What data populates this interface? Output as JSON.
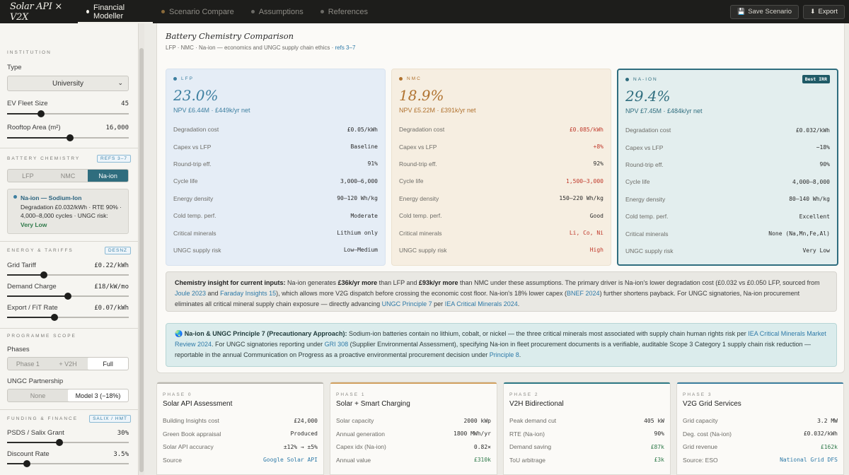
{
  "app": {
    "brand": "Solar API × V2X"
  },
  "nav": {
    "tabs": [
      {
        "label": "Financial Modeller"
      },
      {
        "label": "Scenario Compare"
      },
      {
        "label": "Assumptions"
      },
      {
        "label": "References"
      }
    ],
    "save_label": "Save Scenario",
    "export_label": "Export"
  },
  "sidebar": {
    "institution": {
      "heading": "INSTITUTION",
      "type_label": "Type",
      "type_value": "University",
      "fleet_label": "EV Fleet Size",
      "fleet_value": "45",
      "fleet_fraction": 0.28,
      "roof_label": "Rooftop Area (m²)",
      "roof_value": "16,000",
      "roof_fraction": 0.52
    },
    "chemistry": {
      "heading": "BATTERY CHEMISTRY",
      "tag": "REFS 3–7",
      "options": [
        "LFP",
        "NMC",
        "Na-ion"
      ],
      "selected": "Na-ion",
      "info_title": "Na-ion — Sodium-Ion",
      "info_text": "Degradation £0.032/kWh · RTE 90% · 4,000–8,000 cycles · UNGC risk: ",
      "info_risk": "Very Low"
    },
    "energy": {
      "heading": "ENERGY & TARIFFS",
      "tag": "DESNZ",
      "grid_label": "Grid Tariff",
      "grid_value": "£0.22/kWh",
      "grid_fraction": 0.3,
      "demand_label": "Demand Charge",
      "demand_value": "£18/kW/mo",
      "demand_fraction": 0.5,
      "export_label": "Export / FiT Rate",
      "export_value": "£0.07/kWh",
      "export_fraction": 0.39
    },
    "scope": {
      "heading": "PROGRAMME SCOPE",
      "phases_label": "Phases",
      "phase_options": [
        "Phase 1",
        "+ V2H",
        "Full"
      ],
      "phase_selected": "Full",
      "ungc_label": "UNGC Partnership",
      "ungc_options": [
        "None",
        "Model 3 (−18%)"
      ],
      "ungc_selected": "Model 3 (−18%)"
    },
    "funding": {
      "heading": "FUNDING & FINANCE",
      "tag": "SALIX / HMT",
      "psds_label": "PSDS / Salix Grant",
      "psds_value": "30%",
      "psds_fraction": 0.43,
      "discount_label": "Discount Rate",
      "discount_value": "3.5%",
      "discount_fraction": 0.16
    }
  },
  "main": {
    "title": "Battery Chemistry Comparison",
    "subtitle": "LFP · NMC · Na-ion — economics and UNGC supply chain ethics · ",
    "subtitle_refs": "refs 3–7",
    "row_labels": [
      "Degradation cost",
      "Capex vs LFP",
      "Round-trip eff.",
      "Cycle life",
      "Energy density",
      "Cold temp. perf.",
      "Critical minerals",
      "UNGC supply risk"
    ],
    "cards": [
      {
        "tag": "LFP",
        "color": "#3d7fa0",
        "irr": "23.0%",
        "npv": "NPV £6.44M · £449k/yr net",
        "values": [
          "£0.05/kWh",
          "Baseline",
          "91%",
          "3,000–6,000",
          "90–120 Wh/kg",
          "Moderate",
          "Lithium only",
          "Low–Medium"
        ]
      },
      {
        "tag": "NMC",
        "color": "#b0722f",
        "irr": "18.9%",
        "npv": "NPV £5.22M · £391k/yr net",
        "values": [
          "£0.085/kWh",
          "+8%",
          "92%",
          "1,500–3,000",
          "150–220 Wh/kg",
          "Good",
          "Li, Co, Ni",
          "High"
        ]
      },
      {
        "tag": "NA-ION",
        "color": "#2f6d7e",
        "badge": "Best IRR",
        "irr": "29.4%",
        "npv": "NPV £7.45M · £484k/yr net",
        "values": [
          "£0.032/kWh",
          "−18%",
          "90%",
          "4,000–8,000",
          "80–140 Wh/kg",
          "Excellent",
          "None (Na,Mn,Fe,Al)",
          "Very Low"
        ]
      }
    ],
    "insight": {
      "lead": "Chemistry insight for current inputs:",
      "t1": " Na-ion generates ",
      "b1": "£36k/yr more",
      "t2": " than LFP and ",
      "b2": "£93k/yr more",
      "t3": " than NMC under these assumptions. The primary driver is Na-ion's lower degradation cost (£0.032 vs £0.050 LFP, sourced from ",
      "l1": "Joule 2023",
      "t4": " and ",
      "l2": "Faraday Insights 15",
      "t5": "), which allows more V2G dispatch before crossing the economic cost floor. Na-ion's 18% lower capex (",
      "l3": "BNEF 2024",
      "t6": ") further shortens payback. For UNGC signatories, Na-ion procurement eliminates all critical mineral supply chain exposure — directly advancing ",
      "l4": "UNGC Principle 7",
      "t7": " per ",
      "l5": "IEA Critical Minerals 2024",
      "t8": "."
    },
    "ungc": {
      "icon": "🌏",
      "lead": "Na-ion & UNGC Principle 7 (Precautionary Approach):",
      "t1": " Sodium-ion batteries contain no lithium, cobalt, or nickel — the three critical minerals most associated with supply chain human rights risk per ",
      "l1": "IEA Critical Minerals Market Review 2024",
      "t2": ". For UNGC signatories reporting under ",
      "l2": "GRI 308",
      "t3": " (Supplier Environmental Assessment), specifying Na-ion in fleet procurement documents is a verifiable, auditable Scope 3 Category 1 supply chain risk reduction — reportable in the annual Communication on Progress as a proactive environmental procurement decision under ",
      "l3": "Principle 8",
      "t4": "."
    }
  },
  "phases": [
    {
      "phase": "PHASE 0",
      "title": "Solar API Assessment",
      "rows": [
        {
          "label": "Building Insights cost",
          "value": "£24,000"
        },
        {
          "label": "Green Book appraisal",
          "value": "Produced"
        },
        {
          "label": "Solar API accuracy",
          "value": "±12% → ±5%"
        },
        {
          "label": "Source",
          "value": "Google Solar API"
        }
      ]
    },
    {
      "phase": "PHASE 1",
      "title": "Solar + Smart Charging",
      "rows": [
        {
          "label": "Solar capacity",
          "value": "2000 kWp"
        },
        {
          "label": "Annual generation",
          "value": "1800 MWh/yr"
        },
        {
          "label": "Capex idx (Na-ion)",
          "value": "0.82×"
        },
        {
          "label": "Annual value",
          "value": "£310k"
        }
      ]
    },
    {
      "phase": "PHASE 2",
      "title": "V2H Bidirectional",
      "rows": [
        {
          "label": "Peak demand cut",
          "value": "405 kW"
        },
        {
          "label": "RTE (Na-ion)",
          "value": "90%"
        },
        {
          "label": "Demand saving",
          "value": "£87k"
        },
        {
          "label": "ToU arbitrage",
          "value": "£3k"
        }
      ]
    },
    {
      "phase": "PHASE 3",
      "title": "V2G Grid Services",
      "rows": [
        {
          "label": "Grid capacity",
          "value": "3.2 MW"
        },
        {
          "label": "Deg. cost (Na-ion)",
          "value": "£0.032/kWh"
        },
        {
          "label": "Grid revenue",
          "value": "£162k"
        },
        {
          "label": "Source: ESO",
          "value": "National Grid DFS"
        }
      ]
    }
  ]
}
